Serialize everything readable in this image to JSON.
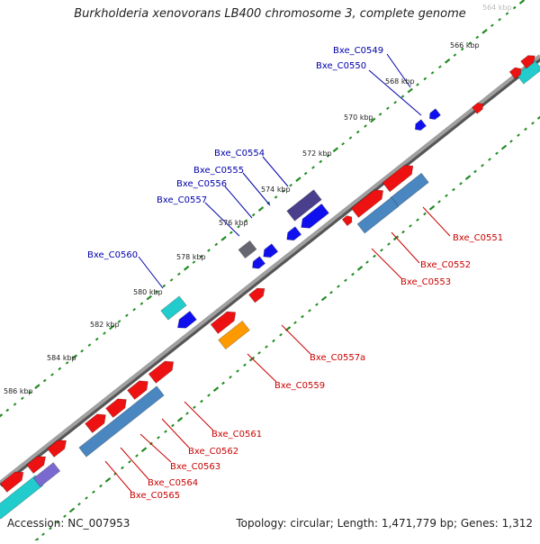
{
  "title": "Burkholderia xenovorans LB400 chromosome 3, complete genome",
  "footer": {
    "accession": "Accession: NC_007953",
    "summary": "Topology: circular; Length: 1,471,779 bp; Genes: 1,312"
  },
  "ticks": [
    {
      "label": "564 kbp",
      "faded": true
    },
    {
      "label": "566 kbp"
    },
    {
      "label": "568 kbp"
    },
    {
      "label": "570 kbp"
    },
    {
      "label": "572 kbp"
    },
    {
      "label": "574 kbp"
    },
    {
      "label": "576 kbp"
    },
    {
      "label": "578 kbp"
    },
    {
      "label": "580 kbp"
    },
    {
      "label": "582 kbp"
    },
    {
      "label": "584 kbp"
    },
    {
      "label": "586 kbp"
    }
  ],
  "gene_labels_blue": [
    "Bxe_C0549",
    "Bxe_C0550",
    "Bxe_C0554",
    "Bxe_C0555",
    "Bxe_C0556",
    "Bxe_C0557",
    "Bxe_C0560"
  ],
  "gene_labels_red": [
    "Bxe_C0551",
    "Bxe_C0552",
    "Bxe_C0553",
    "Bxe_C0557a",
    "Bxe_C0559",
    "Bxe_C0561",
    "Bxe_C0562",
    "Bxe_C0563",
    "Bxe_C0564",
    "Bxe_C0565"
  ],
  "colors": {
    "forward_gene": "#ee1111",
    "reverse_gene": "#1010ee",
    "cds_steel": "#4a86c0",
    "cyan_gene": "#22cccc",
    "orange_gene": "#ff9900",
    "purple_gene": "#7a6ad0",
    "dark_purple_gene": "#4a3f8c",
    "gray_gene": "#666670",
    "backbone": "#888888",
    "tick_dots": "#228b22",
    "label_blue": "#0000aa",
    "label_red": "#cc0000"
  }
}
